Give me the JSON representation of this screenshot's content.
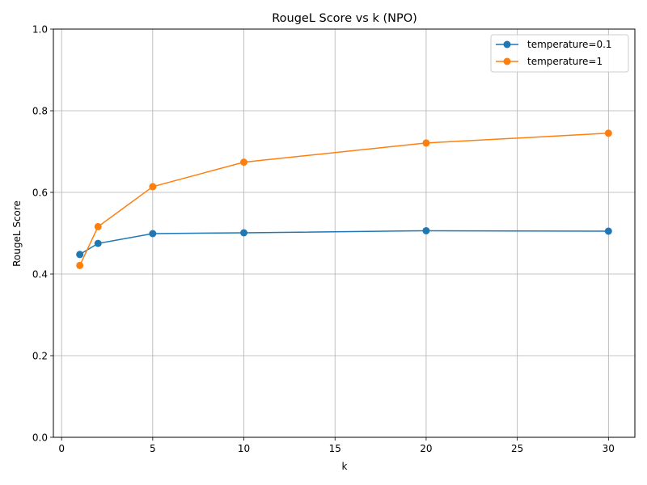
{
  "chart_data": {
    "type": "line",
    "title": "RougeL Score vs k (NPO)",
    "xlabel": "k",
    "ylabel": "RougeL Score",
    "xlim": [
      -0.45,
      31.45
    ],
    "ylim": [
      0.0,
      1.0
    ],
    "xticks": [
      0,
      5,
      10,
      15,
      20,
      25,
      30
    ],
    "yticks": [
      0.0,
      0.2,
      0.4,
      0.6,
      0.8,
      1.0
    ],
    "xtick_labels": [
      "0",
      "5",
      "10",
      "15",
      "20",
      "25",
      "30"
    ],
    "ytick_labels": [
      "0.0",
      "0.2",
      "0.4",
      "0.6",
      "0.8",
      "1.0"
    ],
    "grid": true,
    "legend_position": "top-right",
    "x": [
      1,
      2,
      5,
      10,
      20,
      30
    ],
    "series": [
      {
        "name": "temperature=0.1",
        "color": "#1f77b4",
        "values": [
          0.448,
          0.475,
          0.499,
          0.501,
          0.506,
          0.505
        ]
      },
      {
        "name": "temperature=1",
        "color": "#ff7f0e",
        "values": [
          0.421,
          0.516,
          0.614,
          0.674,
          0.721,
          0.745
        ]
      }
    ]
  }
}
